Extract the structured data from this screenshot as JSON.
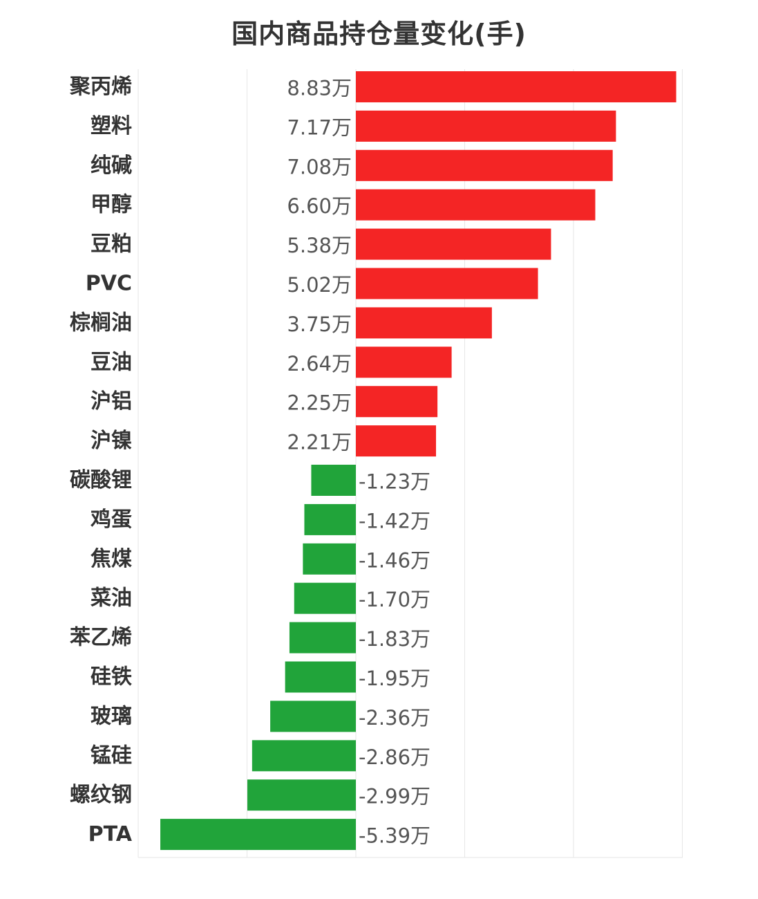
{
  "chart_data": {
    "type": "bar",
    "orientation": "horizontal",
    "title": "国内商品持仓量变化(手)",
    "unit_suffix": "万",
    "categories": [
      "聚丙烯",
      "塑料",
      "纯碱",
      "甲醇",
      "豆粕",
      "PVC",
      "棕榈油",
      "豆油",
      "沪铝",
      "沪镍",
      "碳酸锂",
      "鸡蛋",
      "焦煤",
      "菜油",
      "苯乙烯",
      "硅铁",
      "玻璃",
      "锰硅",
      "螺纹钢",
      "PTA"
    ],
    "values": [
      8.83,
      7.17,
      7.08,
      6.6,
      5.38,
      5.02,
      3.75,
      2.64,
      2.25,
      2.21,
      -1.23,
      -1.42,
      -1.46,
      -1.7,
      -1.83,
      -1.95,
      -2.36,
      -2.86,
      -2.99,
      -5.39
    ],
    "value_labels": [
      "8.83万",
      "7.17万",
      "7.08万",
      "6.60万",
      "5.38万",
      "5.02万",
      "3.75万",
      "2.64万",
      "2.25万",
      "2.21万",
      "-1.23万",
      "-1.42万",
      "-1.46万",
      "-1.70万",
      "-1.83万",
      "-1.95万",
      "-2.36万",
      "-2.86万",
      "-2.99万",
      "-5.39万"
    ],
    "xlim": [
      -6,
      9
    ],
    "grid": true,
    "colors": {
      "positive": "#f42525",
      "negative": "#21a43a",
      "grid": "#e6e6e6"
    }
  }
}
